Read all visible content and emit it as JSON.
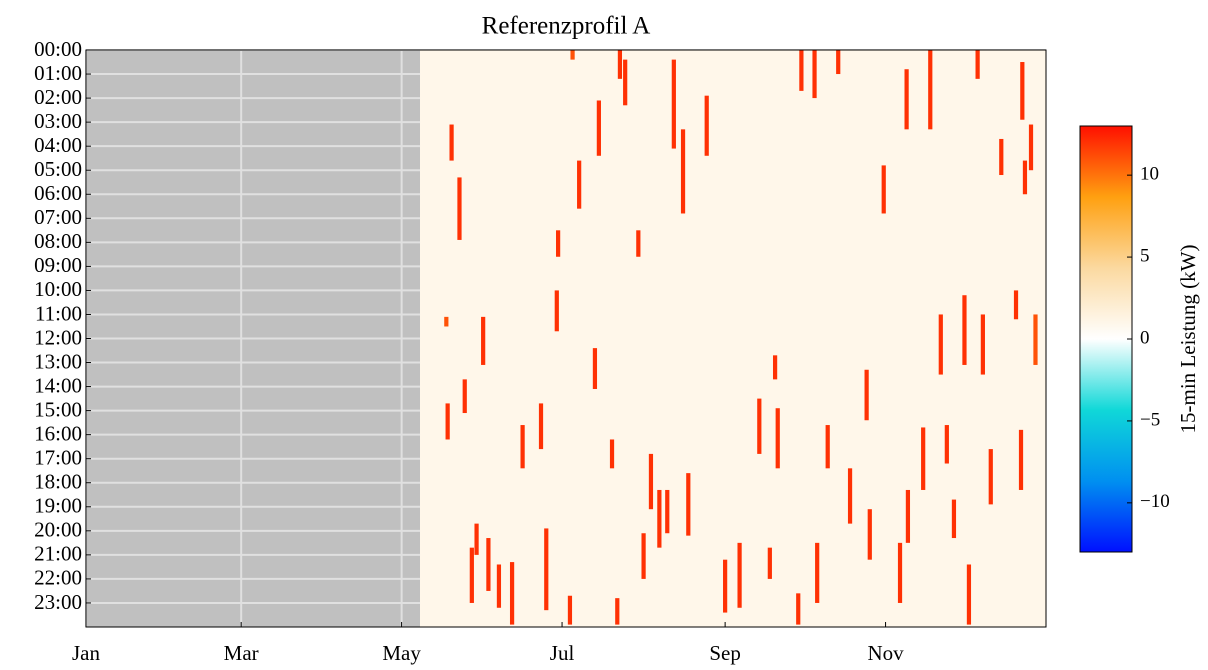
{
  "chart_data": {
    "type": "heatmap",
    "title": "Referenzprofil A",
    "colorbar_label": "15-min Leistung (kW)",
    "xlim": [
      0,
      365
    ],
    "xticks": [
      {
        "value": 0,
        "label": "Jan"
      },
      {
        "value": 59,
        "label": "Mar"
      },
      {
        "value": 120,
        "label": "May"
      },
      {
        "value": 181,
        "label": "Jul"
      },
      {
        "value": 243,
        "label": "Sep"
      },
      {
        "value": 304,
        "label": "Nov"
      }
    ],
    "ylim": [
      0,
      24
    ],
    "yticks": [
      {
        "value": 0,
        "label": "00:00"
      },
      {
        "value": 1,
        "label": "01:00"
      },
      {
        "value": 2,
        "label": "02:00"
      },
      {
        "value": 3,
        "label": "03:00"
      },
      {
        "value": 4,
        "label": "04:00"
      },
      {
        "value": 5,
        "label": "05:00"
      },
      {
        "value": 6,
        "label": "06:00"
      },
      {
        "value": 7,
        "label": "07:00"
      },
      {
        "value": 8,
        "label": "08:00"
      },
      {
        "value": 9,
        "label": "09:00"
      },
      {
        "value": 10,
        "label": "10:00"
      },
      {
        "value": 11,
        "label": "11:00"
      },
      {
        "value": 12,
        "label": "12:00"
      },
      {
        "value": 13,
        "label": "13:00"
      },
      {
        "value": 14,
        "label": "14:00"
      },
      {
        "value": 15,
        "label": "15:00"
      },
      {
        "value": 16,
        "label": "16:00"
      },
      {
        "value": 17,
        "label": "17:00"
      },
      {
        "value": 18,
        "label": "18:00"
      },
      {
        "value": 19,
        "label": "19:00"
      },
      {
        "value": 20,
        "label": "20:00"
      },
      {
        "value": 21,
        "label": "21:00"
      },
      {
        "value": 22,
        "label": "22:00"
      },
      {
        "value": 23,
        "label": "23:00"
      }
    ],
    "zlim": [
      -13,
      13
    ],
    "zticks": [
      {
        "value": -10,
        "label": "−10"
      },
      {
        "value": -5,
        "label": "−5"
      },
      0,
      5,
      10
    ],
    "colors": [
      "#0010ff",
      "#0090f0",
      "#10d8d8",
      "#ffffff",
      "#fbd9a0",
      "#ffa010",
      "#ff1000"
    ],
    "missing_color": "#c0c0c0",
    "missing_xlim": [
      0,
      127
    ],
    "grid": true,
    "x": [
      139,
      142,
      137,
      151,
      144,
      137.5,
      148.5,
      146.7,
      153,
      162,
      166,
      173,
      175,
      179.5,
      179,
      187.5,
      185,
      193.5,
      195,
      203,
      205,
      210,
      200,
      214.8,
      218,
      221,
      229,
      227,
      223.5,
      236,
      212,
      243,
      248.5,
      256,
      262,
      263,
      260,
      272,
      277,
      286,
      296.8,
      303.3,
      282,
      290.5,
      298,
      312,
      321,
      325,
      318.3,
      334,
      341,
      353.6,
      356,
      359.3,
      357,
      355.5,
      361,
      339,
      327.3,
      344,
      330,
      335.7,
      312.5,
      309.5,
      278,
      270.8,
      202,
      184,
      157,
      348
    ],
    "y_start": [
      3.1,
      5.3,
      11.1,
      11.1,
      13.7,
      14.7,
      19.7,
      20.7,
      20.3,
      21.3,
      15.6,
      14.7,
      19.9,
      7.5,
      10,
      4.6,
      0,
      12.4,
      2.1,
      0,
      0.4,
      7.5,
      16.2,
      16.8,
      18.3,
      18.3,
      17.6,
      3.3,
      0.4,
      1.9,
      20.1,
      21.2,
      20.5,
      14.5,
      12.7,
      14.9,
      20.7,
      0,
      0,
      0,
      13.3,
      4.8,
      15.6,
      17.4,
      19.1,
      0.8,
      0,
      11,
      15.7,
      10.2,
      11,
      10,
      0.5,
      3.1,
      4.6,
      15.8,
      11,
      0,
      15.6,
      16.6,
      18.7,
      21.4,
      18.3,
      20.5,
      20.5,
      22.6,
      22.8,
      22.7,
      21.4,
      3.7
    ],
    "y_end": [
      4.6,
      7.9,
      11.5,
      13.1,
      15.1,
      16.2,
      21,
      23,
      22.5,
      23.9,
      17.4,
      16.6,
      23.3,
      8.6,
      11.7,
      6.6,
      0.4,
      14.1,
      4.4,
      1.2,
      2.3,
      8.6,
      17.4,
      19.1,
      20.7,
      20.1,
      20.2,
      6.8,
      4.1,
      4.4,
      22,
      23.4,
      23.2,
      16.8,
      13.7,
      17.4,
      22,
      1.7,
      2,
      1,
      15.4,
      6.8,
      17.4,
      19.7,
      21.2,
      3.3,
      3.3,
      13.5,
      18.3,
      13.1,
      13.5,
      11.2,
      2.9,
      5,
      6,
      18.3,
      13.1,
      1.2,
      17.2,
      18.9,
      20.3,
      23.9,
      20.5,
      23,
      23,
      23.9,
      23.9,
      23.9,
      23.2,
      5.2
    ],
    "values": [
      12,
      12,
      11,
      12,
      12,
      12,
      12,
      12,
      12,
      12,
      12,
      12,
      12,
      12,
      12,
      12,
      11,
      12,
      12,
      12,
      12,
      12,
      12,
      12,
      12,
      12,
      12,
      12,
      12,
      12,
      12,
      12,
      12,
      12,
      12,
      12,
      12,
      12,
      12,
      12,
      12,
      12,
      12,
      12,
      12,
      12,
      12,
      12,
      12,
      12,
      12,
      12,
      12,
      12,
      12,
      12,
      11,
      12,
      12,
      12,
      12,
      12,
      12,
      12,
      12,
      12,
      12,
      12,
      12,
      12
    ]
  }
}
